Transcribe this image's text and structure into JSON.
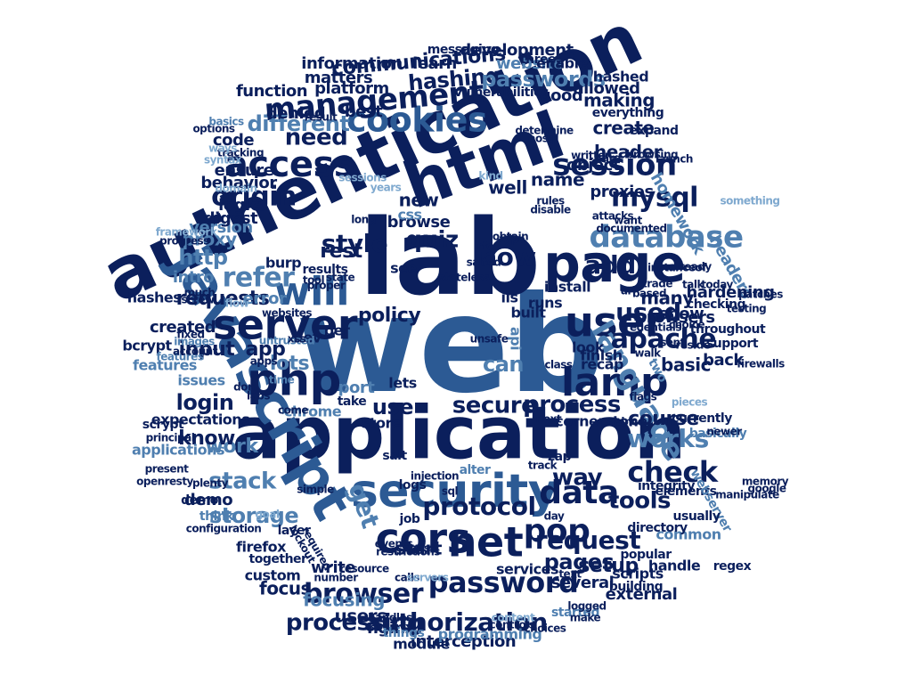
{
  "palette": {
    "navy": "#0b1f5c",
    "dark_blue": "#16357a",
    "blue": "#2c5a94",
    "mid_blue": "#4f7fb0",
    "light_blue": "#7fa9cf",
    "pale_blue": "#a9c8e4"
  },
  "words": [
    {
      "text": "web",
      "color": "blue"
    },
    {
      "text": "lab",
      "color": "navy"
    },
    {
      "text": "application",
      "color": "navy"
    },
    {
      "text": "authentication",
      "color": "navy"
    },
    {
      "text": "html",
      "color": "navy"
    },
    {
      "text": "javascript",
      "color": "blue"
    },
    {
      "text": "security",
      "color": "blue"
    },
    {
      "text": "page",
      "color": "navy"
    },
    {
      "text": "php",
      "color": "navy"
    },
    {
      "text": "server",
      "color": "navy"
    },
    {
      "text": "user",
      "color": "navy"
    },
    {
      "text": "will",
      "color": "blue"
    },
    {
      "text": "cors",
      "color": "navy"
    },
    {
      "text": "net",
      "color": "navy"
    },
    {
      "text": "lamp",
      "color": "navy"
    },
    {
      "text": "access",
      "color": "navy"
    },
    {
      "text": "cookies",
      "color": "blue"
    },
    {
      "text": "management",
      "color": "navy"
    },
    {
      "text": "session",
      "color": "navy"
    },
    {
      "text": "database",
      "color": "mid_blue"
    },
    {
      "text": "language",
      "color": "mid_blue"
    },
    {
      "text": "password",
      "color": "navy"
    },
    {
      "text": "authorization",
      "color": "navy"
    },
    {
      "text": "data",
      "color": "navy"
    },
    {
      "text": "pop",
      "color": "navy"
    },
    {
      "text": "mysql",
      "color": "navy"
    },
    {
      "text": "origin",
      "color": "navy"
    },
    {
      "text": "browser",
      "color": "navy"
    },
    {
      "text": "request",
      "color": "navy"
    },
    {
      "text": "protocol",
      "color": "navy"
    },
    {
      "text": "check",
      "color": "navy"
    },
    {
      "text": "apache",
      "color": "navy"
    },
    {
      "text": "secure",
      "color": "navy"
    },
    {
      "text": "process",
      "color": "navy"
    },
    {
      "text": "works",
      "color": "mid_blue"
    },
    {
      "text": "refer",
      "color": "mid_blue"
    },
    {
      "text": "used",
      "color": "navy"
    },
    {
      "text": "quiz",
      "color": "navy"
    },
    {
      "text": "now",
      "color": "navy"
    },
    {
      "text": "style",
      "color": "navy"
    },
    {
      "text": "rest",
      "color": "navy"
    },
    {
      "text": "tools",
      "color": "navy"
    },
    {
      "text": "stack",
      "color": "mid_blue"
    },
    {
      "text": "storage",
      "color": "mid_blue"
    },
    {
      "text": "processing",
      "color": "navy"
    },
    {
      "text": "login",
      "color": "navy"
    },
    {
      "text": "input",
      "color": "navy"
    },
    {
      "text": "get",
      "color": "mid_blue"
    },
    {
      "text": "use",
      "color": "navy"
    },
    {
      "text": "can",
      "color": "mid_blue"
    },
    {
      "text": "lots",
      "color": "mid_blue"
    },
    {
      "text": "app",
      "color": "navy"
    },
    {
      "text": "work",
      "color": "mid_blue"
    },
    {
      "text": "know",
      "color": "navy"
    },
    {
      "text": "need",
      "color": "navy"
    },
    {
      "text": "different",
      "color": "mid_blue"
    },
    {
      "text": "hashing",
      "color": "navy"
    },
    {
      "text": "passwords",
      "color": "mid_blue"
    },
    {
      "text": "communications",
      "color": "navy"
    },
    {
      "text": "development",
      "color": "navy"
    },
    {
      "text": "website",
      "color": "mid_blue"
    },
    {
      "text": "matters",
      "color": "navy"
    },
    {
      "text": "learn",
      "color": "navy"
    },
    {
      "text": "platform",
      "color": "navy"
    },
    {
      "text": "information",
      "color": "navy"
    },
    {
      "text": "function",
      "color": "navy"
    },
    {
      "text": "denied",
      "color": "navy"
    },
    {
      "text": "best",
      "color": "navy"
    },
    {
      "text": "ensure",
      "color": "navy"
    },
    {
      "text": "behavior",
      "color": "navy"
    },
    {
      "text": "code",
      "color": "navy"
    },
    {
      "text": "version",
      "color": "mid_blue"
    },
    {
      "text": "http",
      "color": "mid_blue"
    },
    {
      "text": "proxy",
      "color": "mid_blue"
    },
    {
      "text": "intro",
      "color": "mid_blue"
    },
    {
      "text": "requests",
      "color": "navy"
    },
    {
      "text": "error",
      "color": "mid_blue"
    },
    {
      "text": "created",
      "color": "navy"
    },
    {
      "text": "policy",
      "color": "navy"
    },
    {
      "text": "add",
      "color": "navy"
    },
    {
      "text": "header",
      "color": "navy"
    },
    {
      "text": "proxies",
      "color": "navy"
    },
    {
      "text": "object",
      "color": "navy"
    },
    {
      "text": "name",
      "color": "navy"
    },
    {
      "text": "well",
      "color": "navy"
    },
    {
      "text": "new",
      "color": "navy"
    },
    {
      "text": "show",
      "color": "navy"
    },
    {
      "text": "many",
      "color": "navy"
    },
    {
      "text": "browsers",
      "color": "navy"
    },
    {
      "text": "basic",
      "color": "navy"
    },
    {
      "text": "back",
      "color": "navy"
    },
    {
      "text": "course",
      "color": "navy"
    },
    {
      "text": "headers",
      "color": "mid_blue"
    },
    {
      "text": "hardening",
      "color": "navy"
    },
    {
      "text": "homework",
      "color": "mid_blue"
    },
    {
      "text": "making",
      "color": "navy"
    },
    {
      "text": "create",
      "color": "navy"
    },
    {
      "text": "good",
      "color": "navy"
    },
    {
      "text": "allowed",
      "color": "navy"
    },
    {
      "text": "hashed",
      "color": "navy"
    },
    {
      "text": "enable",
      "color": "navy"
    },
    {
      "text": "setup",
      "color": "navy"
    },
    {
      "text": "pages",
      "color": "navy"
    },
    {
      "text": "start",
      "color": "navy"
    },
    {
      "text": "way",
      "color": "navy"
    },
    {
      "text": "demo",
      "color": "navy"
    },
    {
      "text": "write",
      "color": "navy"
    },
    {
      "text": "focus",
      "color": "navy"
    },
    {
      "text": "focusing",
      "color": "mid_blue"
    },
    {
      "text": "users",
      "color": "navy"
    },
    {
      "text": "nginx",
      "color": "navy"
    },
    {
      "text": "module",
      "color": "navy"
    },
    {
      "text": "interception",
      "color": "navy"
    },
    {
      "text": "programming",
      "color": "mid_blue"
    },
    {
      "text": "several",
      "color": "navy"
    },
    {
      "text": "scripts",
      "color": "navy"
    },
    {
      "text": "services",
      "color": "navy"
    },
    {
      "text": "external",
      "color": "navy"
    },
    {
      "text": "handle",
      "color": "navy"
    },
    {
      "text": "firefox",
      "color": "navy"
    },
    {
      "text": "chrome",
      "color": "mid_blue"
    },
    {
      "text": "store",
      "color": "navy"
    },
    {
      "text": "cornerstone",
      "color": "navy"
    },
    {
      "text": "issues",
      "color": "mid_blue"
    },
    {
      "text": "features",
      "color": "mid_blue"
    },
    {
      "text": "expectations",
      "color": "navy"
    },
    {
      "text": "scrypt",
      "color": "navy"
    },
    {
      "text": "hashes",
      "color": "navy"
    },
    {
      "text": "bcrypt",
      "color": "navy"
    },
    {
      "text": "digest",
      "color": "navy"
    },
    {
      "text": "logic",
      "color": "navy"
    },
    {
      "text": "browse",
      "color": "navy"
    },
    {
      "text": "burp",
      "color": "navy"
    },
    {
      "text": "port",
      "color": "mid_blue"
    },
    {
      "text": "dev",
      "color": "navy"
    },
    {
      "text": "lets",
      "color": "navy"
    },
    {
      "text": "iis",
      "color": "navy"
    },
    {
      "text": "built",
      "color": "navy"
    },
    {
      "text": "runs",
      "color": "navy"
    },
    {
      "text": "install",
      "color": "navy"
    },
    {
      "text": "recap",
      "color": "navy"
    },
    {
      "text": "finish",
      "color": "navy"
    },
    {
      "text": "look",
      "color": "navy"
    },
    {
      "text": "api",
      "color": "mid_blue"
    },
    {
      "text": "per",
      "color": "navy"
    },
    {
      "text": "results",
      "color": "navy"
    },
    {
      "text": "css",
      "color": "mid_blue"
    },
    {
      "text": "see",
      "color": "navy"
    },
    {
      "text": "take",
      "color": "navy"
    },
    {
      "text": "demo",
      "color": "navy"
    },
    {
      "text": "common",
      "color": "mid_blue"
    },
    {
      "text": "think",
      "color": "mid_blue"
    },
    {
      "text": "applications",
      "color": "mid_blue"
    },
    {
      "text": "custom",
      "color": "navy"
    },
    {
      "text": "logs",
      "color": "navy"
    },
    {
      "text": "job",
      "color": "navy"
    },
    {
      "text": "layer",
      "color": "navy"
    },
    {
      "text": "together",
      "color": "navy"
    },
    {
      "text": "vulnerabilities",
      "color": "navy"
    },
    {
      "text": "messaging",
      "color": "navy"
    },
    {
      "text": "three",
      "color": "navy"
    },
    {
      "text": "expand",
      "color": "navy"
    },
    {
      "text": "everything",
      "color": "navy"
    },
    {
      "text": "already",
      "color": "navy"
    },
    {
      "text": "checking",
      "color": "navy"
    },
    {
      "text": "throughout",
      "color": "navy"
    },
    {
      "text": "support",
      "color": "navy"
    },
    {
      "text": "currently",
      "color": "navy"
    },
    {
      "text": "basically",
      "color": "mid_blue"
    },
    {
      "text": "integrity",
      "color": "navy"
    },
    {
      "text": "directory",
      "color": "navy"
    },
    {
      "text": "building",
      "color": "navy"
    },
    {
      "text": "started",
      "color": "mid_blue"
    },
    {
      "text": "things",
      "color": "mid_blue"
    },
    {
      "text": "popular",
      "color": "navy"
    },
    {
      "text": "regex",
      "color": "navy"
    },
    {
      "text": "elements",
      "color": "navy"
    },
    {
      "text": "webserver",
      "color": "mid_blue"
    },
    {
      "text": "usually",
      "color": "navy"
    },
    {
      "text": "salt",
      "color": "navy"
    },
    {
      "text": "alter",
      "color": "mid_blue"
    },
    {
      "text": "zap",
      "color": "navy"
    },
    {
      "text": "next",
      "color": "navy"
    },
    {
      "text": "since",
      "color": "navy"
    },
    {
      "text": "plenty",
      "color": "navy"
    },
    {
      "text": "principal",
      "color": "navy"
    },
    {
      "text": "present",
      "color": "navy"
    },
    {
      "text": "openresty",
      "color": "navy"
    },
    {
      "text": "labs",
      "color": "navy"
    },
    {
      "text": "apps",
      "color": "navy"
    },
    {
      "text": "time",
      "color": "mid_blue"
    },
    {
      "text": "features",
      "color": "mid_blue"
    },
    {
      "text": "account",
      "color": "navy"
    },
    {
      "text": "images",
      "color": "mid_blue"
    },
    {
      "text": "untrusted",
      "color": "mid_blue"
    },
    {
      "text": "much",
      "color": "navy"
    },
    {
      "text": "screw",
      "color": "navy"
    },
    {
      "text": "options",
      "color": "navy"
    },
    {
      "text": "basics",
      "color": "mid_blue"
    },
    {
      "text": "tracking",
      "color": "navy"
    },
    {
      "text": "tool",
      "color": "navy"
    },
    {
      "text": "proper",
      "color": "navy"
    },
    {
      "text": "state",
      "color": "navy"
    },
    {
      "text": "stateless",
      "color": "navy"
    },
    {
      "text": "long",
      "color": "navy"
    },
    {
      "text": "years",
      "color": "light_blue"
    },
    {
      "text": "rules",
      "color": "navy"
    },
    {
      "text": "disable",
      "color": "navy"
    },
    {
      "text": "attacks",
      "color": "navy"
    },
    {
      "text": "want",
      "color": "navy"
    },
    {
      "text": "documented",
      "color": "navy"
    },
    {
      "text": "trade",
      "color": "navy"
    },
    {
      "text": "based",
      "color": "navy"
    },
    {
      "text": "talk",
      "color": "navy"
    },
    {
      "text": "today",
      "color": "navy"
    },
    {
      "text": "launch",
      "color": "navy"
    },
    {
      "text": "browsing",
      "color": "navy"
    },
    {
      "text": "written",
      "color": "navy"
    },
    {
      "text": "care",
      "color": "navy"
    },
    {
      "text": "syntax",
      "color": "light_blue"
    },
    {
      "text": "ways",
      "color": "light_blue"
    },
    {
      "text": "result",
      "color": "navy"
    },
    {
      "text": "injection",
      "color": "navy"
    },
    {
      "text": "sql",
      "color": "navy"
    },
    {
      "text": "calls",
      "color": "navy"
    },
    {
      "text": "events",
      "color": "navy"
    },
    {
      "text": "restrictions",
      "color": "navy"
    },
    {
      "text": "controls",
      "color": "navy"
    },
    {
      "text": "choices",
      "color": "navy"
    },
    {
      "text": "content",
      "color": "light_blue"
    },
    {
      "text": "servers",
      "color": "light_blue"
    },
    {
      "text": "resource",
      "color": "navy"
    },
    {
      "text": "number",
      "color": "navy"
    },
    {
      "text": "handles",
      "color": "navy"
    },
    {
      "text": "make",
      "color": "navy"
    },
    {
      "text": "logged",
      "color": "navy"
    },
    {
      "text": "uri",
      "color": "navy"
    },
    {
      "text": "instanceof",
      "color": "navy"
    },
    {
      "text": "credentials",
      "color": "navy"
    },
    {
      "text": "choice",
      "color": "navy"
    },
    {
      "text": "reside",
      "color": "navy"
    },
    {
      "text": "walk",
      "color": "navy"
    },
    {
      "text": "pieces",
      "color": "light_blue"
    },
    {
      "text": "newer",
      "color": "navy"
    },
    {
      "text": "sends",
      "color": "navy"
    },
    {
      "text": "lockout",
      "color": "navy"
    },
    {
      "text": "required",
      "color": "navy"
    },
    {
      "text": "goal",
      "color": "light_blue"
    },
    {
      "text": "flow",
      "color": "light_blue"
    },
    {
      "text": "websites",
      "color": "navy"
    },
    {
      "text": "come",
      "color": "navy"
    },
    {
      "text": "simple",
      "color": "navy"
    },
    {
      "text": "class",
      "color": "navy"
    },
    {
      "text": "dom",
      "color": "navy"
    },
    {
      "text": "xss",
      "color": "navy"
    },
    {
      "text": "two",
      "color": "mid_blue"
    },
    {
      "text": "sent",
      "color": "navy"
    },
    {
      "text": "flags",
      "color": "navy"
    },
    {
      "text": "track",
      "color": "navy"
    },
    {
      "text": "fixed",
      "color": "navy"
    },
    {
      "text": "configuration",
      "color": "navy"
    },
    {
      "text": "day",
      "color": "navy"
    },
    {
      "text": "text",
      "color": "navy"
    },
    {
      "text": "testing",
      "color": "navy"
    },
    {
      "text": "patches",
      "color": "navy"
    },
    {
      "text": "firewalls",
      "color": "navy"
    },
    {
      "text": "something",
      "color": "light_blue"
    },
    {
      "text": "obtain",
      "color": "navy"
    },
    {
      "text": "kind",
      "color": "light_blue"
    },
    {
      "text": "type",
      "color": "navy"
    },
    {
      "text": "salted",
      "color": "navy"
    },
    {
      "text": "rfc",
      "color": "navy"
    },
    {
      "text": "framework",
      "color": "light_blue"
    },
    {
      "text": "progress",
      "color": "navy"
    },
    {
      "text": "domain",
      "color": "light_blue"
    },
    {
      "text": "sessions",
      "color": "light_blue"
    },
    {
      "text": "determine",
      "color": "navy"
    },
    {
      "text": "nosql",
      "color": "navy"
    },
    {
      "text": "memory",
      "color": "navy"
    },
    {
      "text": "google",
      "color": "navy"
    },
    {
      "text": "manipulate",
      "color": "navy"
    },
    {
      "text": "unsafe",
      "color": "navy"
    }
  ]
}
